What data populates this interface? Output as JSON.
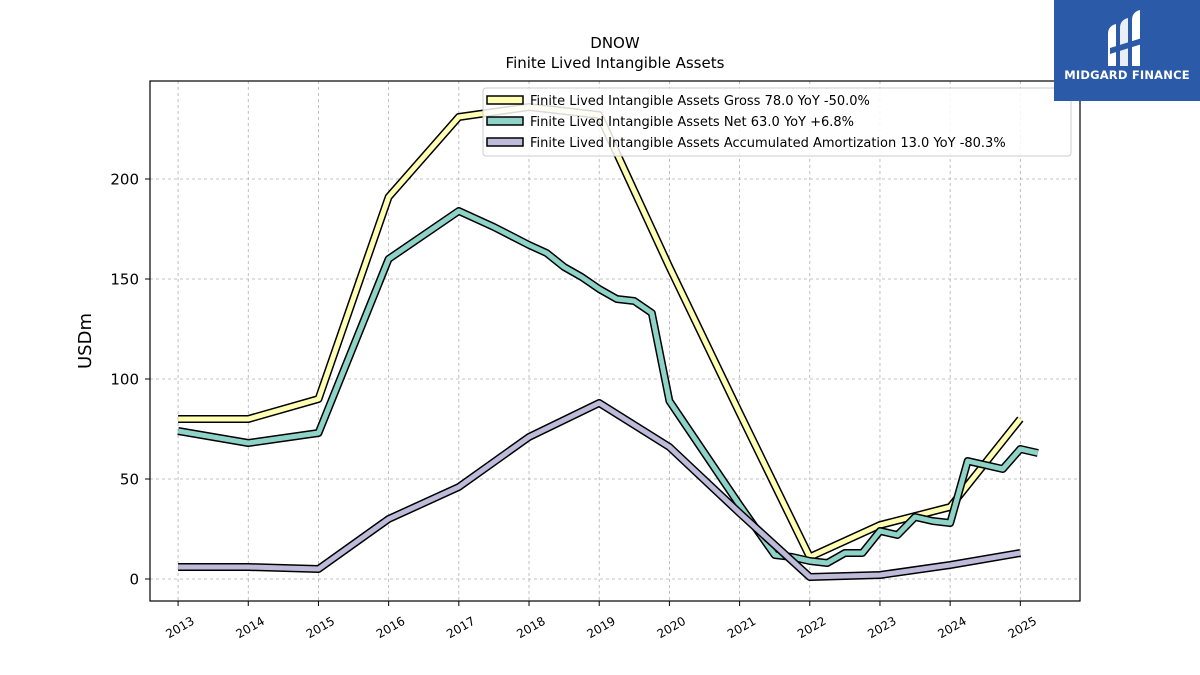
{
  "brand": {
    "name": "MIDGARD FINANCE",
    "bg_color": "#2b5aa8",
    "icon": "midgard-logo-icon"
  },
  "chart_data": {
    "type": "line",
    "title": "DNOW",
    "subtitle": "Finite Lived Intangible Assets",
    "ylabel": "USDm",
    "xlabel": "",
    "xlim": [
      2012.6,
      2025.85
    ],
    "ylim": [
      -11,
      249
    ],
    "x_ticks": [
      2013,
      2014,
      2015,
      2016,
      2017,
      2018,
      2019,
      2020,
      2021,
      2022,
      2023,
      2024,
      2025
    ],
    "x_tick_labels": [
      "2013",
      "2014",
      "2015",
      "2016",
      "2017",
      "2018",
      "2019",
      "2020",
      "2021",
      "2022",
      "2023",
      "2024",
      "2025"
    ],
    "y_ticks": [
      0,
      50,
      100,
      150,
      200
    ],
    "y_tick_labels": [
      "0",
      "50",
      "100",
      "150",
      "200"
    ],
    "grid": true,
    "legend_position": "top-right",
    "series": [
      {
        "name": "Finite Lived Intangible Assets Gross  78.0 YoY -50.0%",
        "color": "#ffffb3",
        "x": [
          2013,
          2014,
          2015,
          2016,
          2017,
          2018,
          2019,
          2020,
          2021,
          2022,
          2023,
          2024,
          2025
        ],
        "y": [
          80,
          80,
          90,
          191,
          231,
          236,
          232,
          156,
          83,
          11,
          27,
          36,
          80
        ]
      },
      {
        "name": "Finite Lived Intangible Assets Net  63.0 YoY +6.8%",
        "color": "#8dd3c7",
        "x": [
          2013,
          2014,
          2015,
          2016,
          2017,
          2017.5,
          2018,
          2018.25,
          2018.5,
          2018.75,
          2019,
          2019.25,
          2019.5,
          2019.75,
          2020,
          2021,
          2021.5,
          2021.75,
          2022,
          2022.25,
          2022.5,
          2022.75,
          2023,
          2023.25,
          2023.5,
          2023.75,
          2024,
          2024.25,
          2024.5,
          2024.75,
          2025,
          2025.25
        ],
        "y": [
          74,
          68,
          73,
          160,
          184,
          176,
          167,
          163,
          156,
          151,
          145,
          140,
          139,
          133,
          89,
          37,
          12,
          11,
          9,
          8,
          13,
          13,
          24,
          22,
          31,
          29,
          28,
          59,
          57,
          55,
          65,
          63
        ]
      },
      {
        "name": "Finite Lived Intangible Assets Accumulated Amortization  13.0 YoY -80.3%",
        "color": "#bebada",
        "x": [
          2013,
          2014,
          2015,
          2016,
          2017,
          2018,
          2019,
          2020,
          2021,
          2022,
          2023,
          2024,
          2025
        ],
        "y": [
          6,
          6,
          5,
          30,
          46,
          71,
          88,
          66,
          33,
          1,
          2,
          7,
          13
        ]
      }
    ]
  }
}
